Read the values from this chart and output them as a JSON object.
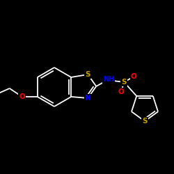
{
  "background_color": "#000000",
  "atom_colors": {
    "S": "#c8a000",
    "N": "#0000ff",
    "O": "#ff0000",
    "H": "#ffffff",
    "C": "#ffffff"
  },
  "figsize": [
    2.5,
    2.5
  ],
  "dpi": 100,
  "lw": 1.3,
  "font_size": 7.5
}
